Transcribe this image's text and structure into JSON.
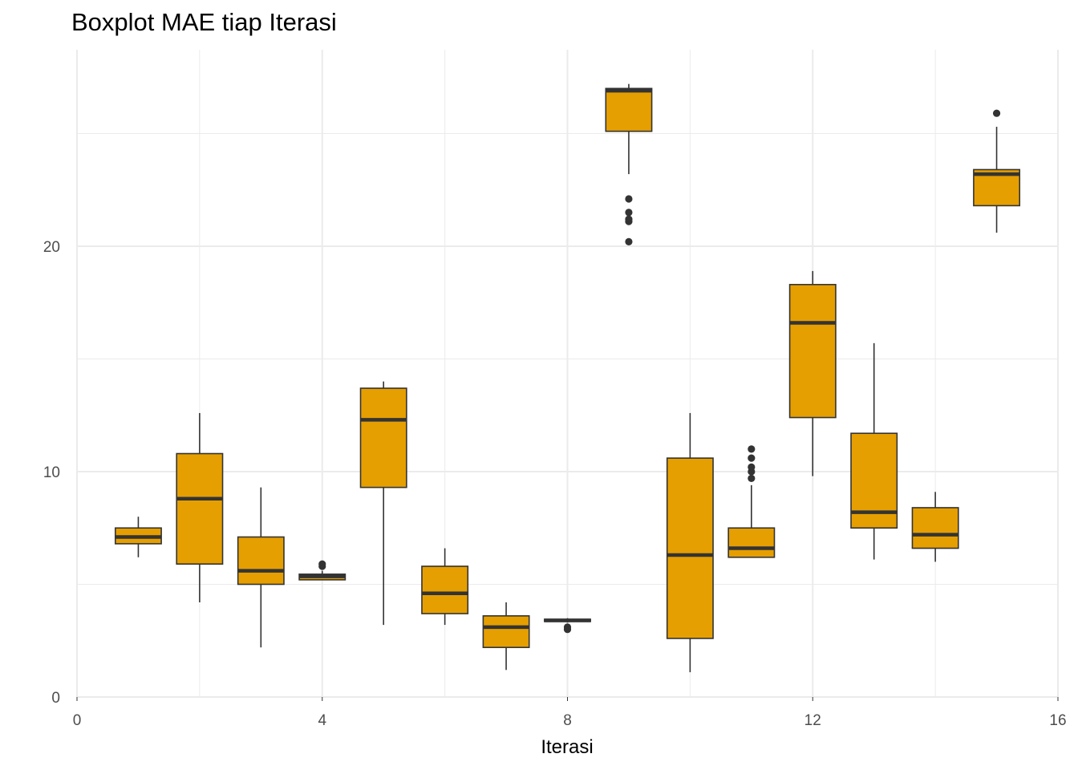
{
  "chart_data": {
    "type": "boxplot",
    "title": "Boxplot MAE tiap Iterasi",
    "xlabel": "Iterasi",
    "ylabel": "",
    "xlim": [
      0,
      16
    ],
    "ylim": [
      0,
      28
    ],
    "x_ticks": [
      0,
      4,
      8,
      12,
      16
    ],
    "y_ticks": [
      0,
      10,
      20
    ],
    "grid": true,
    "fill_color": "#E69F00",
    "line_color": "#333333",
    "grid_color": "#ebebeb",
    "boxes": [
      {
        "x": 1,
        "whisker_low": 6.2,
        "q1": 6.8,
        "median": 7.1,
        "q3": 7.5,
        "whisker_high": 8.0,
        "outliers": []
      },
      {
        "x": 2,
        "whisker_low": 4.2,
        "q1": 5.9,
        "median": 8.8,
        "q3": 10.8,
        "whisker_high": 12.6,
        "outliers": []
      },
      {
        "x": 3,
        "whisker_low": 2.2,
        "q1": 5.0,
        "median": 5.6,
        "q3": 7.1,
        "whisker_high": 9.3,
        "outliers": []
      },
      {
        "x": 4,
        "whisker_low": 5.2,
        "q1": 5.2,
        "median": 5.35,
        "q3": 5.45,
        "whisker_high": 5.6,
        "outliers": [
          5.8,
          5.9
        ]
      },
      {
        "x": 5,
        "whisker_low": 3.2,
        "q1": 9.3,
        "median": 12.3,
        "q3": 13.7,
        "whisker_high": 14.0,
        "outliers": []
      },
      {
        "x": 6,
        "whisker_low": 3.2,
        "q1": 3.7,
        "median": 4.6,
        "q3": 5.8,
        "whisker_high": 6.6,
        "outliers": []
      },
      {
        "x": 7,
        "whisker_low": 1.2,
        "q1": 2.2,
        "median": 3.1,
        "q3": 3.6,
        "whisker_high": 4.2,
        "outliers": []
      },
      {
        "x": 8,
        "whisker_low": 3.3,
        "q1": 3.35,
        "median": 3.4,
        "q3": 3.45,
        "whisker_high": 3.5,
        "outliers": [
          3.0,
          3.1
        ]
      },
      {
        "x": 9,
        "whisker_low": 23.2,
        "q1": 25.1,
        "median": 26.9,
        "q3": 27.0,
        "whisker_high": 27.2,
        "outliers": [
          20.2,
          21.1,
          21.2,
          21.5,
          22.1
        ]
      },
      {
        "x": 10,
        "whisker_low": 1.1,
        "q1": 2.6,
        "median": 6.3,
        "q3": 10.6,
        "whisker_high": 12.6,
        "outliers": []
      },
      {
        "x": 11,
        "whisker_low": 6.2,
        "q1": 6.2,
        "median": 6.6,
        "q3": 7.5,
        "whisker_high": 9.4,
        "outliers": [
          9.7,
          10.0,
          10.2,
          10.6,
          11.0
        ]
      },
      {
        "x": 12,
        "whisker_low": 9.8,
        "q1": 12.4,
        "median": 16.6,
        "q3": 18.3,
        "whisker_high": 18.9,
        "outliers": []
      },
      {
        "x": 13,
        "whisker_low": 6.1,
        "q1": 7.5,
        "median": 8.2,
        "q3": 11.7,
        "whisker_high": 15.7,
        "outliers": []
      },
      {
        "x": 14,
        "whisker_low": 6.0,
        "q1": 6.6,
        "median": 7.2,
        "q3": 8.4,
        "whisker_high": 9.1,
        "outliers": []
      },
      {
        "x": 15,
        "whisker_low": 20.6,
        "q1": 21.8,
        "median": 23.2,
        "q3": 23.4,
        "whisker_high": 25.3,
        "outliers": [
          25.9
        ]
      }
    ]
  }
}
